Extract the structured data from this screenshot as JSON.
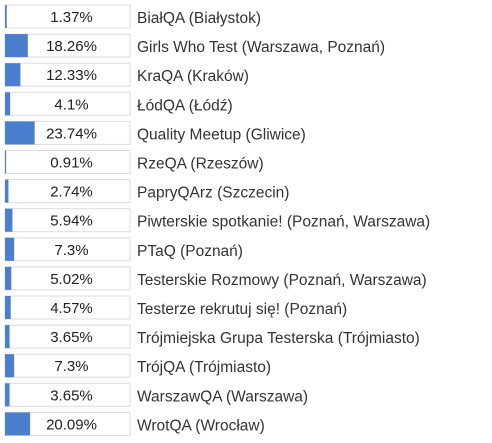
{
  "chart_data": {
    "type": "bar",
    "orientation": "horizontal",
    "title": "",
    "xlabel": "",
    "ylabel": "",
    "xlim": [
      0,
      100
    ],
    "value_suffix": "%",
    "bar_color": "#4a7fd0",
    "categories": [
      "BiałQA (Białystok)",
      "Girls Who Test (Warszawa, Poznań)",
      "KraQA (Kraków)",
      "ŁódQA (Łódź)",
      "Quality Meetup (Gliwice)",
      "RzeQA (Rzeszów)",
      "PapryQArz (Szczecin)",
      "Piwterskie spotkanie! (Poznań, Warszawa)",
      "PTaQ (Poznań)",
      "Testerskie Rozmowy (Poznań, Warszawa)",
      "Testerze rekrutuj się! (Poznań)",
      "Trójmiejska Grupa Testerska (Trójmiasto)",
      "TrójQA (Trójmiasto)",
      "WarszawQA (Warszawa)",
      "WrotQA (Wrocław)"
    ],
    "values": [
      1.37,
      18.26,
      12.33,
      4.1,
      23.74,
      0.91,
      2.74,
      5.94,
      7.3,
      5.02,
      4.57,
      3.65,
      7.3,
      3.65,
      20.09
    ],
    "labels": [
      "1.37%",
      "18.26%",
      "12.33%",
      "4.1%",
      "23.74%",
      "0.91%",
      "2.74%",
      "5.94%",
      "7.3%",
      "5.02%",
      "4.57%",
      "3.65%",
      "7.3%",
      "3.65%",
      "20.09%"
    ]
  }
}
